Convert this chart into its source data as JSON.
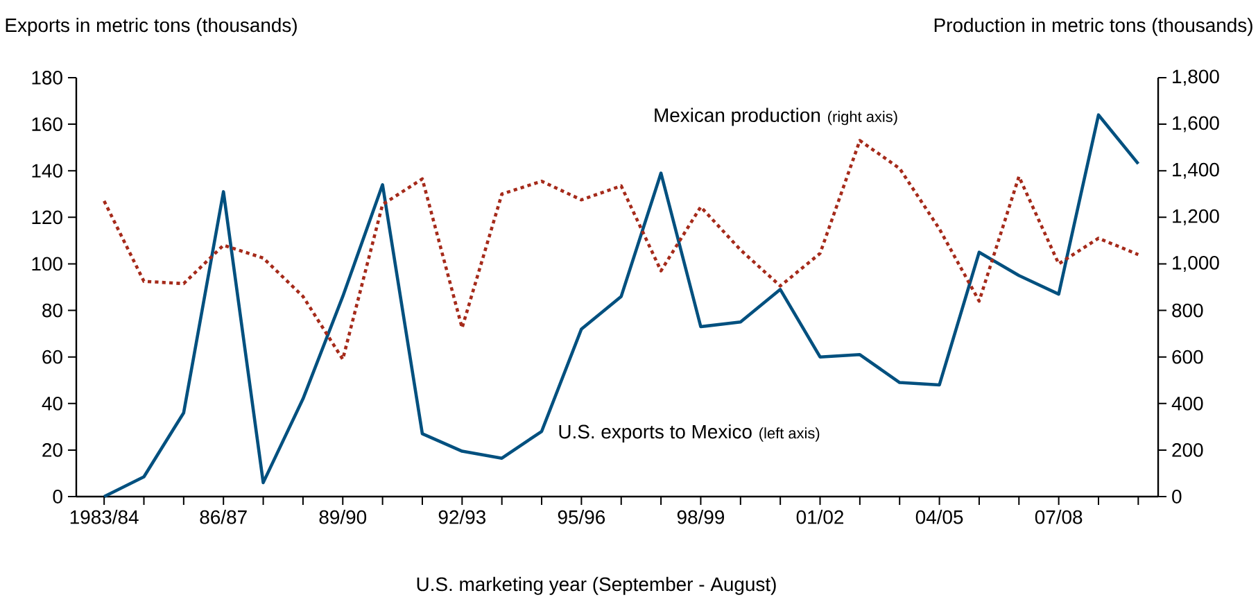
{
  "chart_data": {
    "type": "line",
    "ylabel": "Exports in metric tons (thousands)",
    "y2label": "Production in metric tons (thousands)",
    "xlabel": "U.S. marketing year (September - August)",
    "categories": [
      "1983/84",
      null,
      null,
      "86/87",
      null,
      null,
      "89/90",
      null,
      null,
      "92/93",
      null,
      null,
      "95/96",
      null,
      null,
      "98/99",
      null,
      null,
      "01/02",
      null,
      null,
      "04/05",
      null,
      null,
      "07/08",
      null,
      null
    ],
    "series": [
      {
        "name": "U.S. exports to Mexico",
        "color": "#00507f",
        "line_style": "solid",
        "values": [
          0,
          8.5,
          36,
          131,
          6,
          42,
          86,
          134,
          27,
          19.5,
          16.5,
          28,
          72,
          86,
          139,
          73,
          75,
          89,
          60,
          61,
          49,
          48,
          105,
          95,
          87,
          164,
          143
        ]
      },
      {
        "name": "Mexican production",
        "color": "#a52a1a",
        "line_style": "dotted",
        "axis": "y2",
        "values": [
          1270,
          925,
          915,
          1080,
          1025,
          860,
          590,
          1255,
          1365,
          725,
          1300,
          1355,
          1275,
          1335,
          970,
          1245,
          1060,
          905,
          1045,
          1530,
          1410,
          1150,
          840,
          1375,
          1000,
          1110,
          1040
        ]
      }
    ],
    "annotations": [
      "(left axis)",
      "(right axis)"
    ],
    "ylim": [
      0,
      180
    ],
    "yticks": [
      0,
      20,
      40,
      60,
      80,
      100,
      120,
      140,
      160,
      180
    ],
    "y2lim": [
      0,
      1800
    ],
    "y2ticks": [
      0,
      200,
      400,
      600,
      800,
      {
        "value": 1000,
        "label": "1,000"
      },
      {
        "value": 1200,
        "label": "1,200"
      },
      {
        "value": 1400,
        "label": "1,400"
      },
      {
        "value": 1600,
        "label": "1,600"
      },
      {
        "value": 1800,
        "label": "1,800"
      }
    ],
    "grid": false,
    "legend": false,
    "marker": "none"
  }
}
